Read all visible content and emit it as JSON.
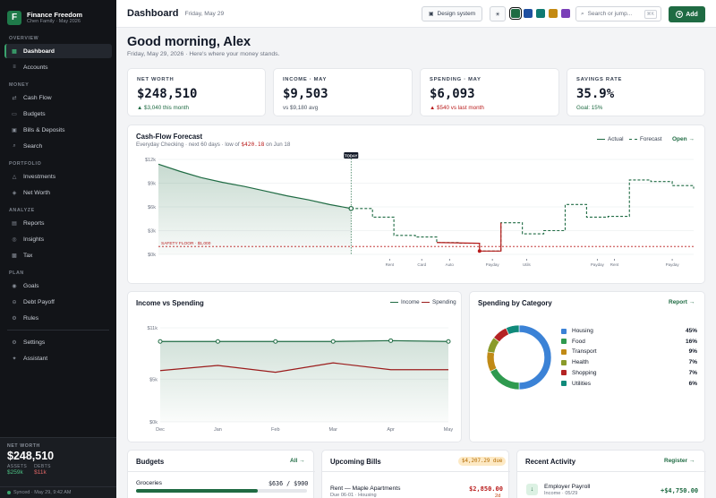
{
  "brand": {
    "logo_letter": "F",
    "title": "Finance Freedom",
    "subtitle": "Chen Family · May 2026"
  },
  "sidebar": {
    "sections": {
      "overview": "OVERVIEW",
      "money": "MONEY",
      "portfolio": "PORTFOLIO",
      "analyze": "ANALYZE",
      "plan": "PLAN"
    },
    "items": {
      "dashboard": {
        "label": "Dashboard",
        "icon": "grid-icon",
        "glyph": "▦"
      },
      "accounts": {
        "label": "Accounts",
        "icon": "list-icon",
        "glyph": "≡"
      },
      "cash_flow": {
        "label": "Cash Flow",
        "icon": "arrows-icon",
        "glyph": "⇄"
      },
      "budgets": {
        "label": "Budgets",
        "icon": "wallet-icon",
        "glyph": "▭"
      },
      "bills": {
        "label": "Bills & Deposits",
        "icon": "calendar-icon",
        "glyph": "▣"
      },
      "search": {
        "label": "Search",
        "icon": "search-icon",
        "glyph": "⌕"
      },
      "investments": {
        "label": "Investments",
        "icon": "triangle-icon",
        "glyph": "△"
      },
      "net_worth": {
        "label": "Net Worth",
        "icon": "diamond-icon",
        "glyph": "◈"
      },
      "reports": {
        "label": "Reports",
        "icon": "report-icon",
        "glyph": "▤"
      },
      "insights": {
        "label": "Insights",
        "icon": "bulb-icon",
        "glyph": "◎"
      },
      "tax": {
        "label": "Tax",
        "icon": "tax-icon",
        "glyph": "▩"
      },
      "goals": {
        "label": "Goals",
        "icon": "target-icon",
        "glyph": "◉"
      },
      "debt_payoff": {
        "label": "Debt Payoff",
        "icon": "minus-circle-icon",
        "glyph": "⊖"
      },
      "rules": {
        "label": "Rules",
        "icon": "rules-icon",
        "glyph": "⚙"
      },
      "settings": {
        "label": "Settings",
        "icon": "gear-icon",
        "glyph": "⚙"
      },
      "assistant": {
        "label": "Assistant",
        "icon": "sparkle-icon",
        "glyph": "✦"
      }
    },
    "net_worth": {
      "label": "NET WORTH",
      "value": "$248,510",
      "assets_label": "ASSETS",
      "assets": "$259k",
      "debts_label": "DEBTS",
      "debts": "$11k"
    },
    "synced": "Synced · May 29, 9:42 AM"
  },
  "topbar": {
    "title": "Dashboard",
    "date": "Friday, May 29",
    "design_system": "Design system",
    "theme_icon": "☀",
    "swatches": [
      "#1f6b43",
      "#1f4fa0",
      "#0f7a72",
      "#c48a12",
      "#7a3fb8"
    ],
    "search_placeholder": "Search or jump...",
    "search_shortcut": "⌘K",
    "add_label": "Add"
  },
  "greeting": {
    "title": "Good morning, Alex",
    "subtitle": "Friday, May 29, 2026 · Here's where your money stands."
  },
  "kpis": [
    {
      "label": "NET WORTH",
      "value": "$248,510",
      "sub": "▲ $3,040 this month",
      "sub_color": "#1f6b43"
    },
    {
      "label": "INCOME · MAY",
      "value": "$9,503",
      "sub": "vs $9,180 avg",
      "sub_color": "#4b5563"
    },
    {
      "label": "SPENDING · MAY",
      "value": "$6,093",
      "sub": "▲ $540 vs last month",
      "sub_color": "#b91c1c"
    },
    {
      "label": "SAVINGS RATE",
      "value": "35.9%",
      "sub": "Goal: 15%",
      "sub_color": "#1f6b43"
    }
  ],
  "forecast": {
    "title": "Cash-Flow Forecast",
    "subtitle_pre": "Everyday Checking · next 60 days · low of ",
    "low_value": "$420.18",
    "subtitle_post": " on Jun 18",
    "legend_actual": "Actual",
    "legend_forecast": "Forecast",
    "open_link": "Open →",
    "today_label": "TODAY",
    "safety_label": "SAFETY FLOOR · $1,000",
    "y_ticks": [
      "$12k",
      "$9k",
      "$6k",
      "$3k",
      "$0k"
    ],
    "event_labels": [
      "Rent",
      "Card",
      "Auto",
      "Payday",
      "Utils",
      "Payday",
      "Rent",
      "Payday"
    ]
  },
  "income_spending": {
    "title": "Income vs Spending",
    "legend_income": "Income",
    "legend_spending": "Spending",
    "y_ticks": [
      "$11k",
      "$5k",
      "$0k"
    ]
  },
  "category": {
    "title": "Spending by Category",
    "report_link": "Report →"
  },
  "budgets": {
    "title": "Budgets",
    "all_link": "All →",
    "item": "Groceries",
    "amount": "$636 / $900",
    "progress": 0.71
  },
  "bills": {
    "title": "Upcoming Bills",
    "badge": "$4,207.29 due",
    "item": "Rent — Maple Apartments",
    "meta": "Due 06-01 · Housing",
    "amount": "$2,850.00",
    "days": "2d"
  },
  "activity": {
    "title": "Recent Activity",
    "register_link": "Register →",
    "item": "Employer Payroll",
    "meta": "Income · 05/29",
    "amount": "+$4,750.00",
    "icon": "arrow-down-icon"
  },
  "chart_data": [
    {
      "type": "line",
      "title": "Cash-Flow Forecast",
      "series": [
        {
          "name": "Actual",
          "x": [
            0,
            1,
            2,
            3,
            4,
            5,
            6,
            7,
            8,
            9
          ],
          "values": [
            11400,
            10500,
            9700,
            9100,
            8600,
            8000,
            7400,
            6900,
            6300,
            5800
          ]
        },
        {
          "name": "Forecast",
          "x": [
            9,
            10,
            11,
            12,
            13,
            14,
            15,
            16,
            17,
            18,
            19,
            20,
            21,
            22,
            23,
            24,
            25
          ],
          "values": [
            5800,
            4700,
            2400,
            2200,
            1500,
            1400,
            420,
            4000,
            2600,
            3000,
            6300,
            4700,
            4800,
            9400,
            9200,
            8700,
            8300
          ]
        }
      ],
      "safety_floor": 1000,
      "ylim": [
        0,
        12000
      ],
      "y_ticks": [
        "$12k",
        "$9k",
        "$6k",
        "$3k",
        "$0k"
      ]
    },
    {
      "type": "area",
      "title": "Income vs Spending",
      "categories": [
        "Dec",
        "Jan",
        "Feb",
        "Mar",
        "Apr",
        "May"
      ],
      "series": [
        {
          "name": "Income",
          "values": [
            9400,
            9400,
            9400,
            9400,
            9500,
            9400
          ]
        },
        {
          "name": "Spending",
          "values": [
            6000,
            6600,
            5800,
            6900,
            6100,
            6100
          ]
        }
      ],
      "ylim": [
        0,
        11000
      ],
      "y_ticks": [
        "$11k",
        "$5k",
        "$0k"
      ]
    },
    {
      "type": "pie",
      "title": "Spending by Category",
      "labels": [
        "Housing",
        "Food",
        "Transport",
        "Health",
        "Shopping",
        "Utilities"
      ],
      "values": [
        45,
        16,
        9,
        7,
        7,
        6
      ],
      "display": [
        "45%",
        "16%",
        "9%",
        "7%",
        "7%",
        "6%"
      ],
      "colors": [
        "#3b82d6",
        "#2f9a4f",
        "#c08a16",
        "#8a9a2a",
        "#b42323",
        "#0f8a7a"
      ]
    }
  ]
}
